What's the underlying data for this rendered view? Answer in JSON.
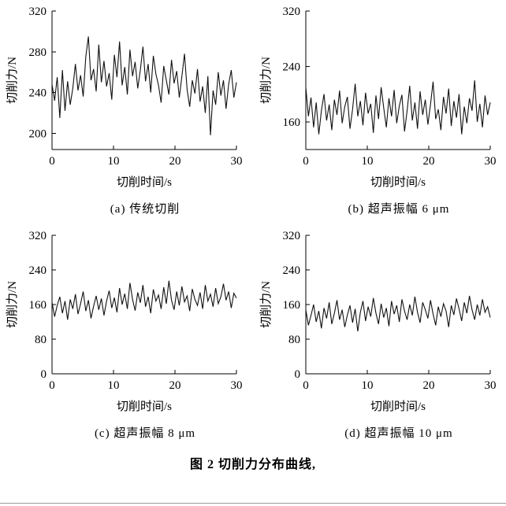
{
  "page": {
    "figure_caption": "图 2 切削力分布曲线,"
  },
  "chart_data": [
    {
      "id": "a",
      "type": "line",
      "title": "(a) 传统切削",
      "xlabel": "切削时间/s",
      "ylabel": "切削力/N",
      "xlim": [
        0,
        30
      ],
      "ylim": [
        184,
        320
      ],
      "xticks": [
        0,
        10,
        20,
        30
      ],
      "yticks": [
        200,
        240,
        280,
        320
      ],
      "line_color": "#111111",
      "values": [
        248,
        232,
        255,
        215,
        262,
        222,
        251,
        228,
        244,
        268,
        242,
        257,
        236,
        275,
        295,
        252,
        263,
        241,
        287,
        250,
        271,
        246,
        259,
        233,
        277,
        255,
        290,
        247,
        265,
        238,
        282,
        256,
        270,
        244,
        262,
        285,
        251,
        268,
        240,
        276,
        258,
        247,
        230,
        266,
        252,
        238,
        272,
        249,
        261,
        235,
        256,
        278,
        243,
        226,
        252,
        239,
        263,
        231,
        246,
        220,
        256,
        198,
        242,
        228,
        260,
        237,
        252,
        224,
        248,
        262,
        235,
        250
      ]
    },
    {
      "id": "b",
      "type": "line",
      "title": "(b) 超声振幅 6 μm",
      "xlabel": "切削时间/s",
      "ylabel": "切削力/N",
      "xlim": [
        0,
        30
      ],
      "ylim": [
        120,
        320
      ],
      "xticks": [
        0,
        10,
        20,
        30
      ],
      "yticks": [
        160,
        240,
        320
      ],
      "line_color": "#111111",
      "values": [
        210,
        168,
        195,
        152,
        188,
        142,
        176,
        200,
        162,
        185,
        148,
        192,
        170,
        205,
        158,
        182,
        196,
        150,
        178,
        215,
        168,
        190,
        155,
        202,
        172,
        186,
        144,
        198,
        164,
        210,
        180,
        152,
        194,
        168,
        206,
        158,
        183,
        199,
        146,
        176,
        212,
        162,
        188,
        150,
        204,
        170,
        192,
        156,
        185,
        218,
        164,
        178,
        148,
        196,
        172,
        208,
        154,
        190,
        166,
        200,
        142,
        182,
        158,
        194,
        176,
        220,
        160,
        186,
        152,
        198,
        170,
        188
      ]
    },
    {
      "id": "c",
      "type": "line",
      "title": "(c) 超声振幅 8 μm",
      "xlabel": "切削时间/s",
      "ylabel": "切削力/N",
      "xlim": [
        0,
        30
      ],
      "ylim": [
        0,
        320
      ],
      "xticks": [
        0,
        10,
        20,
        30
      ],
      "yticks": [
        0,
        80,
        160,
        240,
        320
      ],
      "line_color": "#111111",
      "values": [
        165,
        132,
        158,
        178,
        140,
        168,
        125,
        172,
        150,
        184,
        138,
        162,
        190,
        145,
        170,
        128,
        156,
        180,
        148,
        174,
        135,
        168,
        192,
        152,
        176,
        142,
        198,
        160,
        185,
        150,
        210,
        172,
        146,
        188,
        164,
        205,
        155,
        178,
        140,
        195,
        168,
        182,
        150,
        200,
        162,
        215,
        170,
        148,
        190,
        158,
        202,
        166,
        180,
        145,
        196,
        172,
        158,
        188,
        150,
        205,
        168,
        184,
        155,
        198,
        162,
        178,
        208,
        170,
        190,
        152,
        186,
        175
      ]
    },
    {
      "id": "d",
      "type": "line",
      "title": "(d) 超声振幅 10 μm",
      "xlabel": "切削时间/s",
      "ylabel": "切削力/N",
      "xlim": [
        0,
        30
      ],
      "ylim": [
        0,
        320
      ],
      "xticks": [
        0,
        10,
        20,
        30
      ],
      "yticks": [
        0,
        80,
        160,
        240,
        320
      ],
      "line_color": "#111111",
      "values": [
        148,
        112,
        135,
        160,
        120,
        145,
        105,
        152,
        128,
        165,
        115,
        140,
        170,
        125,
        148,
        108,
        136,
        158,
        118,
        150,
        98,
        142,
        168,
        122,
        155,
        132,
        175,
        140,
        115,
        162,
        130,
        152,
        110,
        168,
        138,
        158,
        120,
        172,
        145,
        125,
        160,
        135,
        178,
        142,
        118,
        165,
        148,
        128,
        170,
        138,
        112,
        155,
        132,
        162,
        145,
        108,
        158,
        136,
        174,
        150,
        122,
        165,
        140,
        180,
        148,
        125,
        160,
        135,
        172,
        142,
        155,
        130
      ]
    }
  ]
}
